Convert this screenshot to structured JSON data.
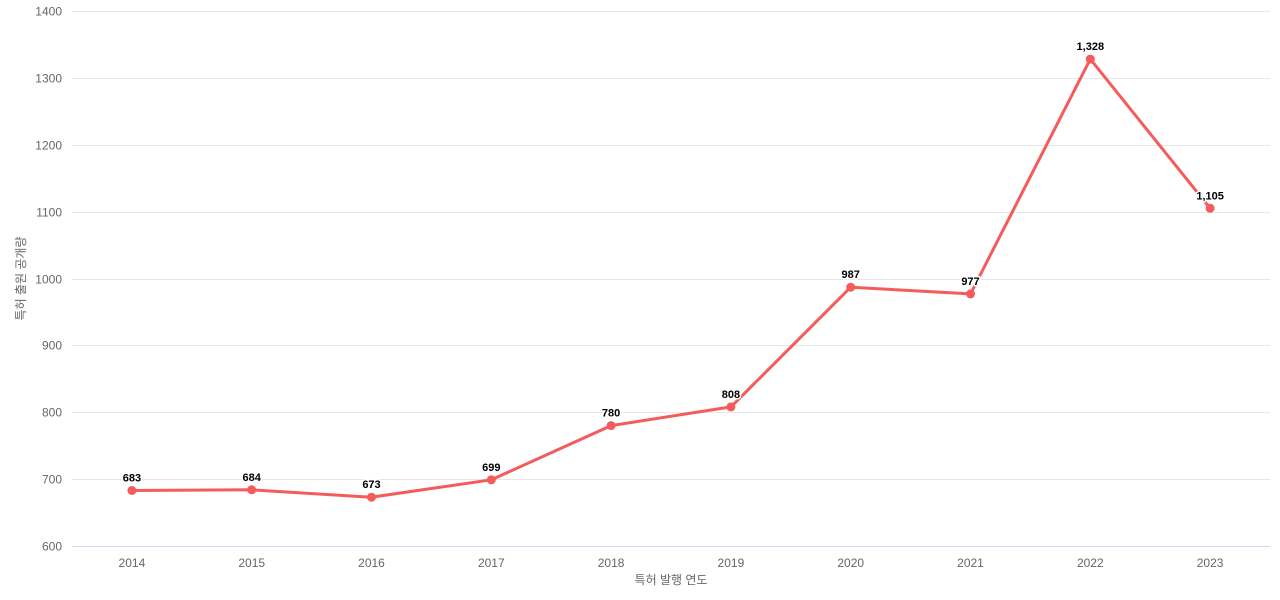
{
  "chart_data": {
    "type": "line",
    "title": "",
    "categories": [
      "2014",
      "2015",
      "2016",
      "2017",
      "2018",
      "2019",
      "2020",
      "2021",
      "2022",
      "2023"
    ],
    "series": [
      {
        "values": [
          683,
          684,
          673,
          699,
          780,
          808,
          987,
          977,
          1328,
          1105
        ],
        "point_labels": [
          "683",
          "684",
          "673",
          "699",
          "780",
          "808",
          "987",
          "977",
          "1,328",
          "1,105"
        ],
        "color": "#f45b5b"
      }
    ],
    "xlabel": "특허 발행 연도",
    "ylabel": "특허 출원 공개량",
    "ylim": [
      600,
      1400
    ],
    "ytick_step": 100,
    "ytick_labels": [
      "600",
      "700",
      "800",
      "900",
      "1000",
      "1100",
      "1200",
      "1300",
      "1400"
    ],
    "grid": true,
    "legend_position": "none"
  },
  "colors": {
    "series_line": "#f45b5b",
    "marker_fill": "#f45b5b",
    "gridline": "#e6e6e6",
    "axis_line": "#ccd6eb",
    "tick_label": "#666666",
    "data_label": "#000000",
    "background": "#ffffff"
  }
}
